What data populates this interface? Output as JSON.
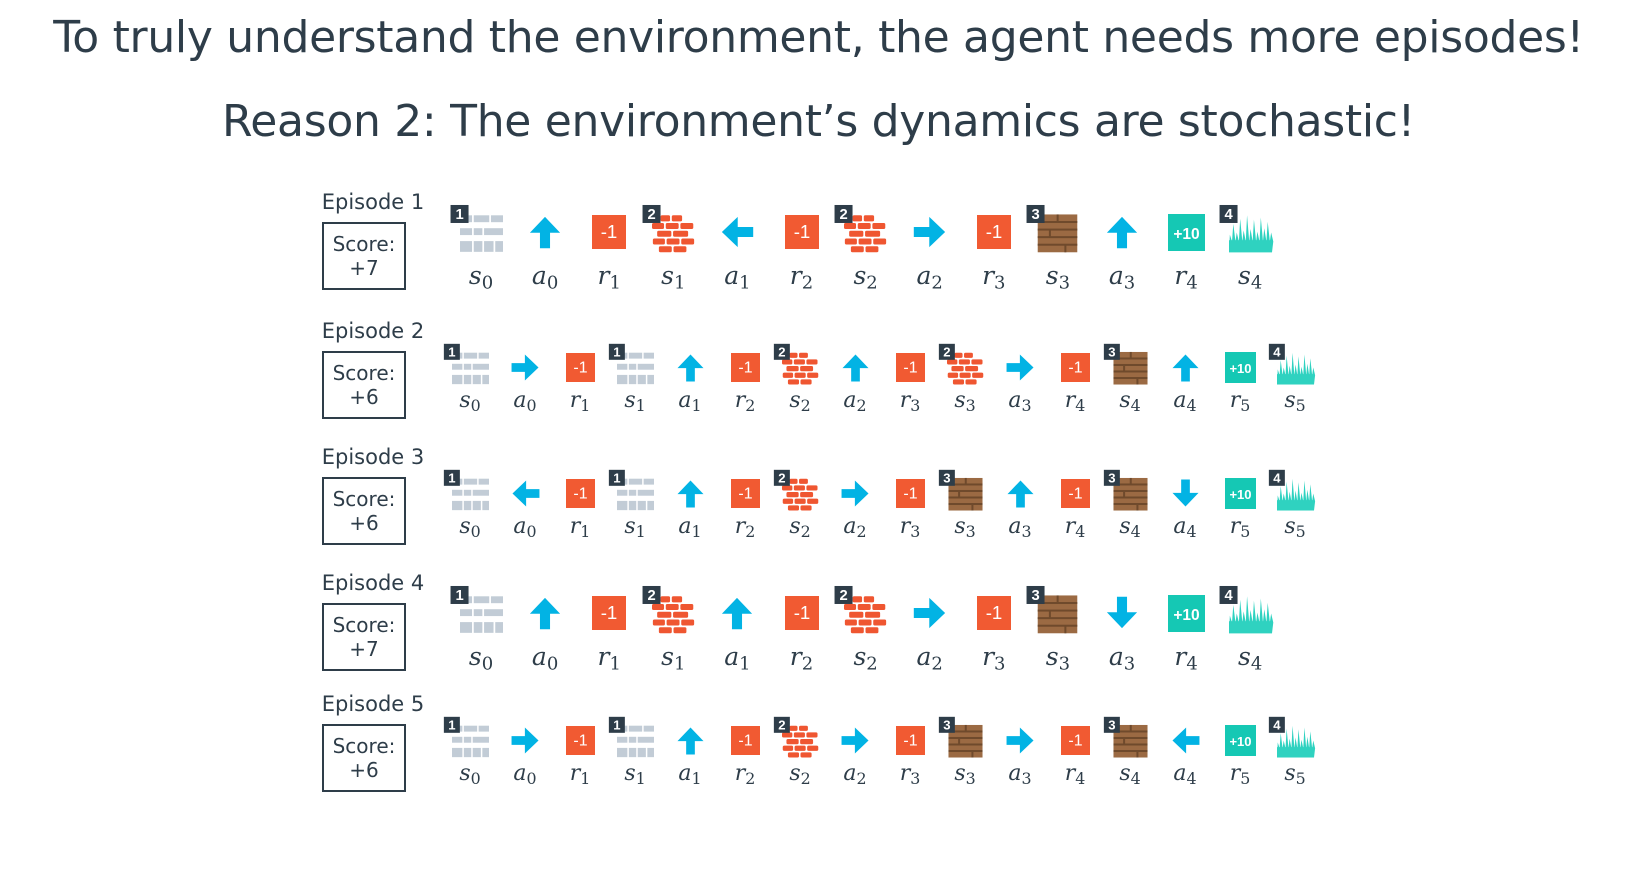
{
  "slide": {
    "title": "To truly understand the environment, the agent needs more episodes!",
    "subtitle": "Reason 2: The environment’s dynamics are stochastic!"
  },
  "colors": {
    "text": "#2e3d49",
    "arrow": "#02b3e4",
    "penalty": "#f15a32",
    "goal": "#15c8b4",
    "state1": "#c2ccd6",
    "state2": "#ef5631",
    "state3": "#9b6a43",
    "state4": "#2fd2c0",
    "badge": "#2e3d49"
  },
  "episodes": [
    {
      "label": "Episode 1",
      "score_label": "Score:",
      "score_value": "+7",
      "steps": [
        {
          "kind": "state",
          "tile": 1,
          "badge": "1",
          "name": "s",
          "idx": "0"
        },
        {
          "kind": "action",
          "dir": "up",
          "name": "a",
          "idx": "0"
        },
        {
          "kind": "reward",
          "text": "-1",
          "name": "r",
          "idx": "1"
        },
        {
          "kind": "state",
          "tile": 2,
          "badge": "2",
          "name": "s",
          "idx": "1"
        },
        {
          "kind": "action",
          "dir": "left",
          "name": "a",
          "idx": "1"
        },
        {
          "kind": "reward",
          "text": "-1",
          "name": "r",
          "idx": "2"
        },
        {
          "kind": "state",
          "tile": 2,
          "badge": "2",
          "name": "s",
          "idx": "2"
        },
        {
          "kind": "action",
          "dir": "right",
          "name": "a",
          "idx": "2"
        },
        {
          "kind": "reward",
          "text": "-1",
          "name": "r",
          "idx": "3"
        },
        {
          "kind": "state",
          "tile": 3,
          "badge": "3",
          "name": "s",
          "idx": "3"
        },
        {
          "kind": "action",
          "dir": "up",
          "name": "a",
          "idx": "3"
        },
        {
          "kind": "goal",
          "text": "+10",
          "name": "r",
          "idx": "4"
        },
        {
          "kind": "state",
          "tile": 4,
          "badge": "4",
          "name": "s",
          "idx": "4"
        }
      ]
    },
    {
      "label": "Episode 2",
      "score_label": "Score:",
      "score_value": "+6",
      "steps": [
        {
          "kind": "state",
          "tile": 1,
          "badge": "1",
          "name": "s",
          "idx": "0"
        },
        {
          "kind": "action",
          "dir": "right",
          "name": "a",
          "idx": "0"
        },
        {
          "kind": "reward",
          "text": "-1",
          "name": "r",
          "idx": "1"
        },
        {
          "kind": "state",
          "tile": 1,
          "badge": "1",
          "name": "s",
          "idx": "1"
        },
        {
          "kind": "action",
          "dir": "up",
          "name": "a",
          "idx": "1"
        },
        {
          "kind": "reward",
          "text": "-1",
          "name": "r",
          "idx": "2"
        },
        {
          "kind": "state",
          "tile": 2,
          "badge": "2",
          "name": "s",
          "idx": "2"
        },
        {
          "kind": "action",
          "dir": "up",
          "name": "a",
          "idx": "2"
        },
        {
          "kind": "reward",
          "text": "-1",
          "name": "r",
          "idx": "3"
        },
        {
          "kind": "state",
          "tile": 2,
          "badge": "2",
          "name": "s",
          "idx": "3"
        },
        {
          "kind": "action",
          "dir": "right",
          "name": "a",
          "idx": "3"
        },
        {
          "kind": "reward",
          "text": "-1",
          "name": "r",
          "idx": "4"
        },
        {
          "kind": "state",
          "tile": 3,
          "badge": "3",
          "name": "s",
          "idx": "4"
        },
        {
          "kind": "action",
          "dir": "up",
          "name": "a",
          "idx": "4"
        },
        {
          "kind": "goal",
          "text": "+10",
          "name": "r",
          "idx": "5"
        },
        {
          "kind": "state",
          "tile": 4,
          "badge": "4",
          "name": "s",
          "idx": "5"
        }
      ]
    },
    {
      "label": "Episode 3",
      "score_label": "Score:",
      "score_value": "+6",
      "steps": [
        {
          "kind": "state",
          "tile": 1,
          "badge": "1",
          "name": "s",
          "idx": "0"
        },
        {
          "kind": "action",
          "dir": "left",
          "name": "a",
          "idx": "0"
        },
        {
          "kind": "reward",
          "text": "-1",
          "name": "r",
          "idx": "1"
        },
        {
          "kind": "state",
          "tile": 1,
          "badge": "1",
          "name": "s",
          "idx": "1"
        },
        {
          "kind": "action",
          "dir": "up",
          "name": "a",
          "idx": "1"
        },
        {
          "kind": "reward",
          "text": "-1",
          "name": "r",
          "idx": "2"
        },
        {
          "kind": "state",
          "tile": 2,
          "badge": "2",
          "name": "s",
          "idx": "2"
        },
        {
          "kind": "action",
          "dir": "right",
          "name": "a",
          "idx": "2"
        },
        {
          "kind": "reward",
          "text": "-1",
          "name": "r",
          "idx": "3"
        },
        {
          "kind": "state",
          "tile": 3,
          "badge": "3",
          "name": "s",
          "idx": "3"
        },
        {
          "kind": "action",
          "dir": "up",
          "name": "a",
          "idx": "3"
        },
        {
          "kind": "reward",
          "text": "-1",
          "name": "r",
          "idx": "4"
        },
        {
          "kind": "state",
          "tile": 3,
          "badge": "3",
          "name": "s",
          "idx": "4"
        },
        {
          "kind": "action",
          "dir": "down",
          "name": "a",
          "idx": "4"
        },
        {
          "kind": "goal",
          "text": "+10",
          "name": "r",
          "idx": "5"
        },
        {
          "kind": "state",
          "tile": 4,
          "badge": "4",
          "name": "s",
          "idx": "5"
        }
      ]
    },
    {
      "label": "Episode 4",
      "score_label": "Score:",
      "score_value": "+7",
      "steps": [
        {
          "kind": "state",
          "tile": 1,
          "badge": "1",
          "name": "s",
          "idx": "0"
        },
        {
          "kind": "action",
          "dir": "up",
          "name": "a",
          "idx": "0"
        },
        {
          "kind": "reward",
          "text": "-1",
          "name": "r",
          "idx": "1"
        },
        {
          "kind": "state",
          "tile": 2,
          "badge": "2",
          "name": "s",
          "idx": "1"
        },
        {
          "kind": "action",
          "dir": "up",
          "name": "a",
          "idx": "1"
        },
        {
          "kind": "reward",
          "text": "-1",
          "name": "r",
          "idx": "2"
        },
        {
          "kind": "state",
          "tile": 2,
          "badge": "2",
          "name": "s",
          "idx": "2"
        },
        {
          "kind": "action",
          "dir": "right",
          "name": "a",
          "idx": "2"
        },
        {
          "kind": "reward",
          "text": "-1",
          "name": "r",
          "idx": "3"
        },
        {
          "kind": "state",
          "tile": 3,
          "badge": "3",
          "name": "s",
          "idx": "3"
        },
        {
          "kind": "action",
          "dir": "down",
          "name": "a",
          "idx": "3"
        },
        {
          "kind": "goal",
          "text": "+10",
          "name": "r",
          "idx": "4"
        },
        {
          "kind": "state",
          "tile": 4,
          "badge": "4",
          "name": "s",
          "idx": "4"
        }
      ]
    },
    {
      "label": "Episode 5",
      "score_label": "Score:",
      "score_value": "+6",
      "steps": [
        {
          "kind": "state",
          "tile": 1,
          "badge": "1",
          "name": "s",
          "idx": "0"
        },
        {
          "kind": "action",
          "dir": "right",
          "name": "a",
          "idx": "0"
        },
        {
          "kind": "reward",
          "text": "-1",
          "name": "r",
          "idx": "1"
        },
        {
          "kind": "state",
          "tile": 1,
          "badge": "1",
          "name": "s",
          "idx": "1"
        },
        {
          "kind": "action",
          "dir": "up",
          "name": "a",
          "idx": "1"
        },
        {
          "kind": "reward",
          "text": "-1",
          "name": "r",
          "idx": "2"
        },
        {
          "kind": "state",
          "tile": 2,
          "badge": "2",
          "name": "s",
          "idx": "2"
        },
        {
          "kind": "action",
          "dir": "right",
          "name": "a",
          "idx": "2"
        },
        {
          "kind": "reward",
          "text": "-1",
          "name": "r",
          "idx": "3"
        },
        {
          "kind": "state",
          "tile": 3,
          "badge": "3",
          "name": "s",
          "idx": "3"
        },
        {
          "kind": "action",
          "dir": "right",
          "name": "a",
          "idx": "3"
        },
        {
          "kind": "reward",
          "text": "-1",
          "name": "r",
          "idx": "4"
        },
        {
          "kind": "state",
          "tile": 3,
          "badge": "3",
          "name": "s",
          "idx": "4"
        },
        {
          "kind": "action",
          "dir": "left",
          "name": "a",
          "idx": "4"
        },
        {
          "kind": "goal",
          "text": "+10",
          "name": "r",
          "idx": "5"
        },
        {
          "kind": "state",
          "tile": 4,
          "badge": "4",
          "name": "s",
          "idx": "5"
        }
      ]
    }
  ]
}
